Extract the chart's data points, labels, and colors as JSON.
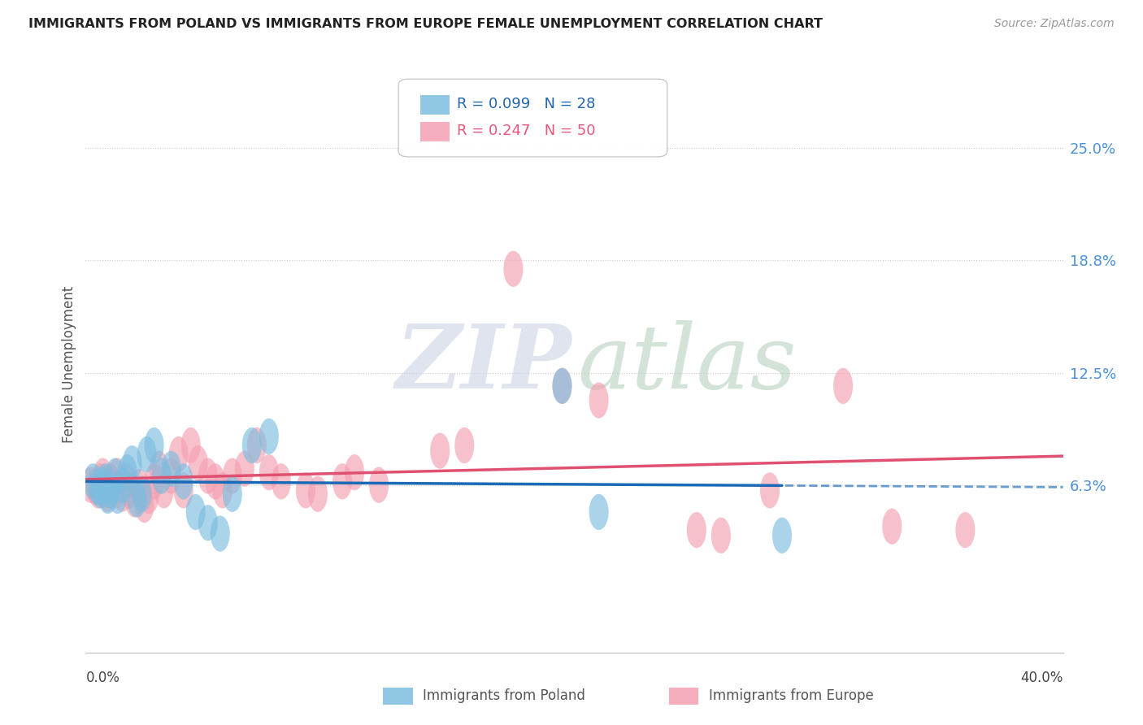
{
  "title": "IMMIGRANTS FROM POLAND VS IMMIGRANTS FROM EUROPE FEMALE UNEMPLOYMENT CORRELATION CHART",
  "source": "Source: ZipAtlas.com",
  "ylabel": "Female Unemployment",
  "y_ticks": [
    0.063,
    0.125,
    0.188,
    0.25
  ],
  "y_tick_labels": [
    "6.3%",
    "12.5%",
    "18.8%",
    "25.0%"
  ],
  "xlim": [
    0.0,
    0.4
  ],
  "ylim": [
    -0.03,
    0.29
  ],
  "poland_color": "#7bbde0",
  "europe_color": "#f4a0b0",
  "poland_line_color": "#1a6ab5",
  "europe_line_color": "#e05070",
  "poland_x": [
    0.003,
    0.005,
    0.006,
    0.007,
    0.008,
    0.009,
    0.01,
    0.012,
    0.013,
    0.015,
    0.017,
    0.019,
    0.021,
    0.023,
    0.025,
    0.028,
    0.031,
    0.035,
    0.04,
    0.045,
    0.05,
    0.055,
    0.06,
    0.068,
    0.075,
    0.195,
    0.21,
    0.285
  ],
  "poland_y": [
    0.065,
    0.062,
    0.06,
    0.063,
    0.065,
    0.057,
    0.06,
    0.068,
    0.057,
    0.063,
    0.07,
    0.075,
    0.055,
    0.058,
    0.08,
    0.085,
    0.068,
    0.072,
    0.065,
    0.048,
    0.042,
    0.036,
    0.058,
    0.085,
    0.09,
    0.118,
    0.048,
    0.035
  ],
  "europe_x": [
    0.002,
    0.004,
    0.005,
    0.006,
    0.007,
    0.008,
    0.009,
    0.01,
    0.011,
    0.012,
    0.013,
    0.015,
    0.017,
    0.018,
    0.02,
    0.022,
    0.024,
    0.026,
    0.028,
    0.03,
    0.032,
    0.035,
    0.038,
    0.04,
    0.043,
    0.046,
    0.05,
    0.053,
    0.056,
    0.06,
    0.065,
    0.07,
    0.075,
    0.08,
    0.09,
    0.095,
    0.105,
    0.11,
    0.12,
    0.145,
    0.155,
    0.175,
    0.195,
    0.21,
    0.25,
    0.26,
    0.28,
    0.31,
    0.33,
    0.36
  ],
  "europe_y": [
    0.063,
    0.062,
    0.06,
    0.065,
    0.068,
    0.06,
    0.058,
    0.065,
    0.063,
    0.06,
    0.068,
    0.058,
    0.065,
    0.06,
    0.055,
    0.062,
    0.052,
    0.057,
    0.065,
    0.072,
    0.06,
    0.068,
    0.08,
    0.06,
    0.085,
    0.075,
    0.068,
    0.065,
    0.06,
    0.068,
    0.072,
    0.085,
    0.07,
    0.065,
    0.06,
    0.058,
    0.065,
    0.07,
    0.063,
    0.082,
    0.085,
    0.183,
    0.118,
    0.11,
    0.038,
    0.035,
    0.06,
    0.118,
    0.04,
    0.038
  ],
  "legend_R_poland": "R = 0.099",
  "legend_N_poland": "N = 28",
  "legend_R_europe": "R = 0.247",
  "legend_N_europe": "N = 50",
  "bottom_label_poland": "Immigrants from Poland",
  "bottom_label_europe": "Immigrants from Europe"
}
